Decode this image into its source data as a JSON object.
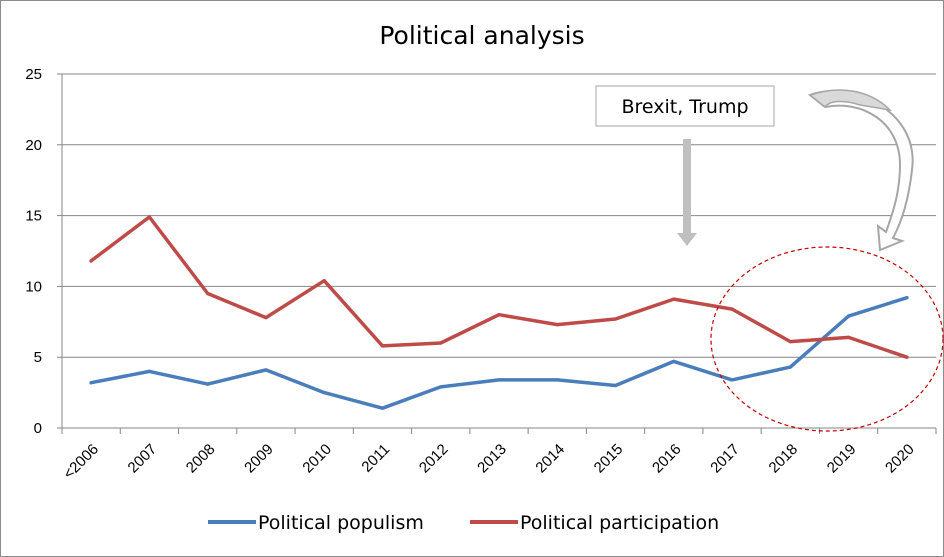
{
  "chart_data": {
    "type": "line",
    "title": "Political analysis",
    "xlabel": "",
    "ylabel": "",
    "categories": [
      "<2006",
      "2007",
      "2008",
      "2009",
      "2010",
      "2011",
      "2012",
      "2013",
      "2014",
      "2015",
      "2016",
      "2017",
      "2018",
      "2019",
      "2020"
    ],
    "ylim": [
      0,
      25
    ],
    "yticks": [
      "0",
      "5",
      "10",
      "15",
      "20",
      "25"
    ],
    "grid": "horizontal",
    "legend_position": "bottom",
    "series": [
      {
        "name": "Political populism",
        "color": "#4a7ebb",
        "values": [
          3.2,
          4.0,
          3.1,
          4.1,
          2.5,
          1.4,
          2.9,
          3.4,
          3.4,
          3.0,
          4.7,
          3.4,
          4.3,
          7.9,
          9.2
        ]
      },
      {
        "name": "Political participation",
        "color": "#be4b48",
        "values": [
          11.8,
          14.9,
          9.5,
          7.8,
          10.4,
          5.8,
          6.0,
          8.0,
          7.3,
          7.7,
          9.1,
          8.4,
          6.1,
          6.4,
          5.0
        ]
      }
    ],
    "annotations": [
      {
        "text": "Brexit, Trump",
        "points_to": "2016"
      }
    ],
    "highlight_region": {
      "from": "2018",
      "to": "2020",
      "color": "#c00000"
    }
  }
}
